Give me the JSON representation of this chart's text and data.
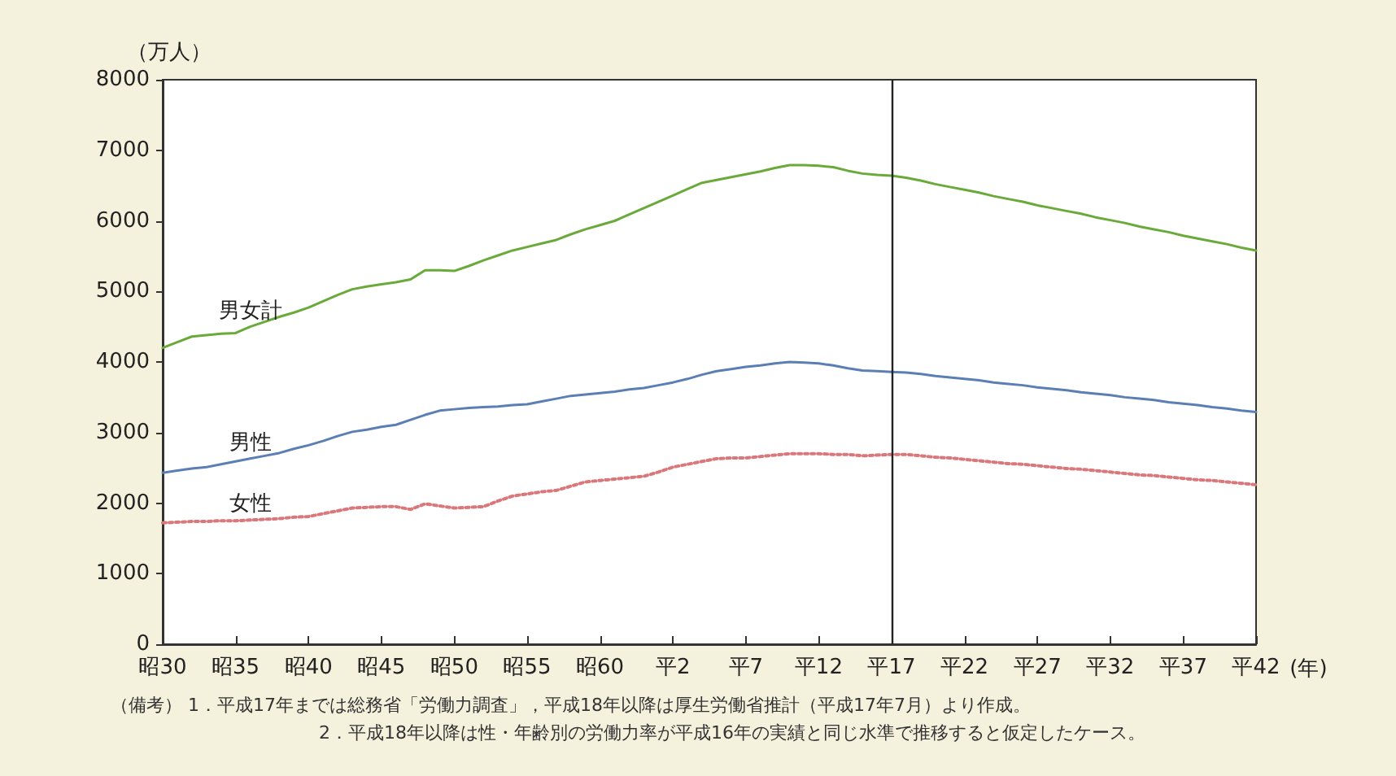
{
  "chart_data": {
    "type": "line",
    "ylabel": "（万人）",
    "xlabel": "(年)",
    "marker": "none",
    "categories": [
      "昭30",
      null,
      null,
      null,
      null,
      "昭35",
      null,
      null,
      null,
      null,
      "昭40",
      null,
      null,
      null,
      null,
      "昭45",
      null,
      null,
      null,
      null,
      "昭50",
      null,
      null,
      null,
      null,
      "昭55",
      null,
      null,
      null,
      null,
      "昭60",
      null,
      null,
      null,
      null,
      "平2",
      null,
      null,
      null,
      null,
      "平7",
      null,
      null,
      null,
      null,
      "平12",
      null,
      null,
      null,
      null,
      "平17",
      null,
      null,
      null,
      null,
      "平22",
      null,
      null,
      null,
      null,
      "平27",
      null,
      null,
      null,
      null,
      "平32",
      null,
      null,
      null,
      null,
      "平37",
      null,
      null,
      null,
      null,
      "平42"
    ],
    "ylim": [
      0,
      8000
    ],
    "yticks": [
      0,
      1000,
      2000,
      3000,
      4000,
      5000,
      6000,
      7000,
      8000
    ],
    "series": [
      {
        "name": "男女計",
        "color": "#6aaa3a",
        "line_style": "solid",
        "values": [
          4200,
          4280,
          4360,
          4380,
          4400,
          4410,
          4500,
          4570,
          4640,
          4700,
          4770,
          4860,
          4950,
          5030,
          5070,
          5100,
          5130,
          5170,
          5300,
          5300,
          5290,
          5360,
          5440,
          5510,
          5580,
          5630,
          5680,
          5730,
          5810,
          5880,
          5940,
          6000,
          6090,
          6180,
          6270,
          6360,
          6450,
          6540,
          6580,
          6620,
          6660,
          6700,
          6750,
          6790,
          6790,
          6780,
          6760,
          6710,
          6670,
          6650,
          6640,
          6610,
          6570,
          6520,
          6480,
          6440,
          6400,
          6350,
          6310,
          6270,
          6220,
          6180,
          6140,
          6100,
          6050,
          6010,
          5970,
          5920,
          5880,
          5840,
          5790,
          5750,
          5710,
          5670,
          5620,
          5580
        ]
      },
      {
        "name": "男性",
        "color": "#5b7fb5",
        "line_style": "solid",
        "values": [
          2430,
          2460,
          2490,
          2510,
          2550,
          2590,
          2630,
          2670,
          2710,
          2770,
          2820,
          2880,
          2950,
          3010,
          3040,
          3080,
          3110,
          3180,
          3250,
          3310,
          3330,
          3350,
          3360,
          3370,
          3390,
          3400,
          3440,
          3480,
          3520,
          3540,
          3560,
          3580,
          3610,
          3630,
          3670,
          3710,
          3760,
          3820,
          3870,
          3900,
          3930,
          3950,
          3980,
          4000,
          3990,
          3980,
          3950,
          3910,
          3880,
          3870,
          3860,
          3850,
          3830,
          3800,
          3780,
          3760,
          3740,
          3710,
          3690,
          3670,
          3640,
          3620,
          3600,
          3570,
          3550,
          3530,
          3500,
          3480,
          3460,
          3430,
          3410,
          3390,
          3360,
          3340,
          3310,
          3290
        ]
      },
      {
        "name": "女性",
        "color": "#d9777a",
        "line_style": "dotted",
        "values": [
          1720,
          1730,
          1740,
          1740,
          1750,
          1750,
          1760,
          1770,
          1780,
          1800,
          1810,
          1850,
          1890,
          1930,
          1940,
          1950,
          1950,
          1910,
          1990,
          1960,
          1930,
          1940,
          1950,
          2030,
          2100,
          2130,
          2160,
          2180,
          2240,
          2300,
          2320,
          2340,
          2360,
          2380,
          2440,
          2510,
          2550,
          2590,
          2630,
          2640,
          2640,
          2660,
          2680,
          2700,
          2700,
          2700,
          2690,
          2690,
          2670,
          2680,
          2690,
          2690,
          2670,
          2650,
          2640,
          2620,
          2600,
          2580,
          2560,
          2550,
          2530,
          2510,
          2490,
          2480,
          2460,
          2440,
          2420,
          2400,
          2390,
          2370,
          2350,
          2330,
          2320,
          2300,
          2280,
          2260
        ]
      }
    ],
    "ref_lines": [
      {
        "axis": "x",
        "value": "平17",
        "color": "#222222"
      }
    ],
    "annotations": [
      "（備考） 1．平成17年までは総務省「労働力調査」，平成18年以降は厚生労働省推計（平成17年7月）より作成。",
      "2．平成18年以降は性・年齢別の労働力率が平成16年の実績と同じ水準で推移すると仮定したケース。"
    ]
  }
}
